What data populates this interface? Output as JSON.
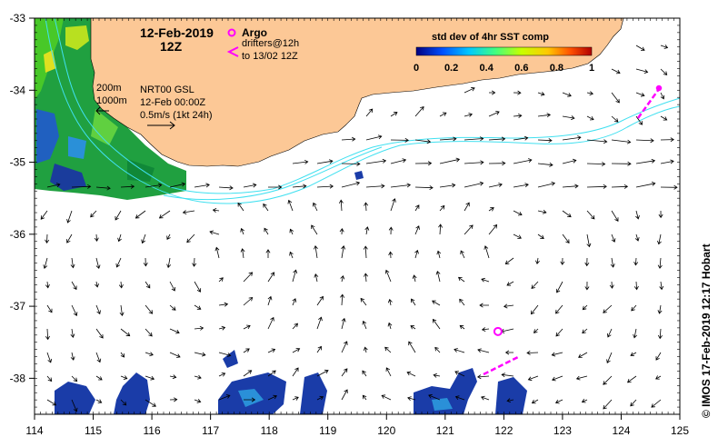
{
  "map": {
    "date_title": "12-Feb-2019",
    "time_title": "12Z",
    "legend": {
      "argo_label": "Argo",
      "drifters_label_1": "drifters@12h",
      "drifters_label_2": "to 13/02 12Z",
      "argo_color": "#ff00ff"
    },
    "colorbar": {
      "title": "std dev of 4hr SST comp",
      "ticks": [
        "0",
        "0.2",
        "0.4",
        "0.6",
        "0.8",
        "1"
      ],
      "colors": [
        "#000080",
        "#0050ff",
        "#00c8ff",
        "#40ff80",
        "#c8ff00",
        "#ffc800",
        "#ff5000",
        "#b00000"
      ]
    },
    "isobath_labels": [
      "200m",
      "1000m"
    ],
    "product": {
      "line1": "NRT00 GSL",
      "line2": "12-Feb 00:00Z",
      "line3": "0.5m/s (1kt 24h)"
    },
    "credit": "© IMOS 17-Feb-2019 12:17 Hobart",
    "colors": {
      "land": "#fcc896",
      "contour": "#40e0f0",
      "arrow": "#000000",
      "frame": "#000000"
    },
    "axes": {
      "x_ticks": [
        "114",
        "115",
        "116",
        "117",
        "118",
        "119",
        "120",
        "121",
        "122",
        "123",
        "124",
        "125"
      ],
      "y_ticks": [
        "-33",
        "-34",
        "-35",
        "-36",
        "-37",
        "-38"
      ],
      "x_range": [
        114,
        125
      ],
      "y_range": [
        -38.5,
        -33
      ]
    },
    "argo_float": {
      "lon": 121.9,
      "lat": -37.35
    }
  }
}
